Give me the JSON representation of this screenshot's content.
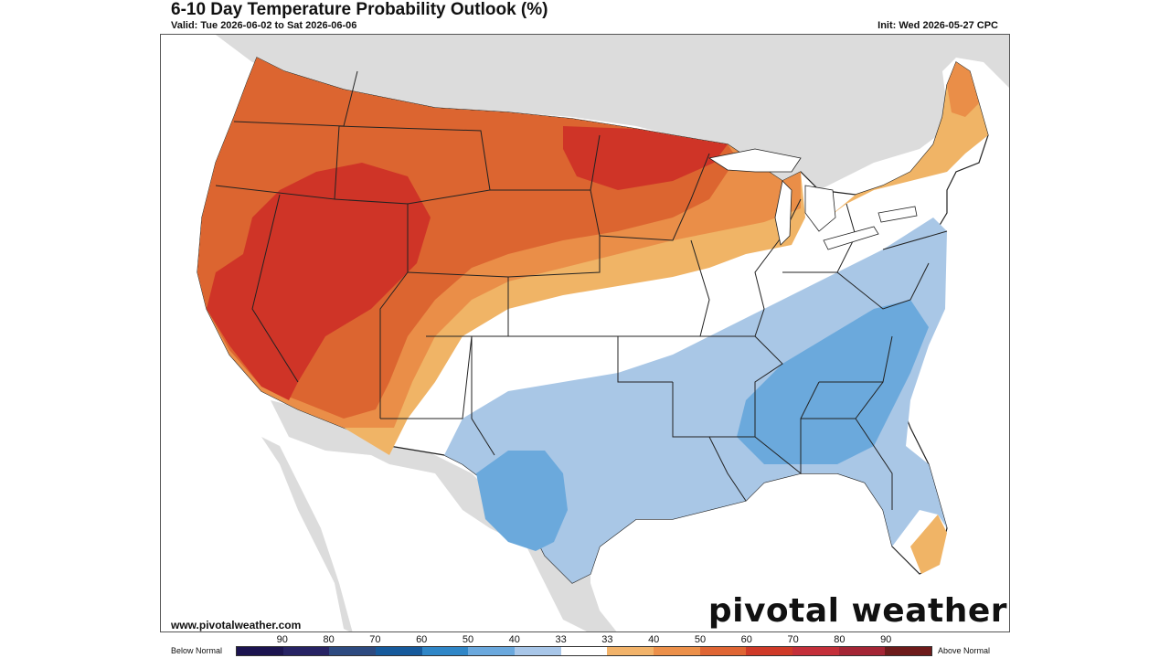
{
  "header": {
    "title": "6-10 Day Temperature Probability Outlook (%)",
    "valid": "Valid: Tue 2026-06-02 to Sat 2026-06-06",
    "init": "Init: Wed 2026-05-27 CPC"
  },
  "footer": {
    "website": "www.pivotalweather.com",
    "brand": "pivotal weather"
  },
  "legend": {
    "below_label": "Below Normal",
    "above_label": "Above Normal",
    "ticks": [
      "90",
      "80",
      "70",
      "60",
      "50",
      "40",
      "33",
      "33",
      "40",
      "50",
      "60",
      "70",
      "80",
      "90"
    ],
    "colors": [
      "#1c1450",
      "#272364",
      "#2d4a80",
      "#165a9c",
      "#2f86c7",
      "#6aa8dd",
      "#a8c6e8",
      "#ffffff",
      "#f2b36a",
      "#ec904a",
      "#df6534",
      "#cf3a28",
      "#c42f3a",
      "#a42535",
      "#6e1b1b"
    ]
  },
  "map": {
    "colors": {
      "land_bg": "#dcdcdc",
      "water": "#ffffff",
      "above_33": "#f0b466",
      "above_40": "#ea8e48",
      "above_50": "#dc6530",
      "above_60": "#cf3427",
      "below_33": "#a9c7e6",
      "below_40": "#6ba9dc",
      "near_normal": "#ffffff",
      "state_line": "#222222",
      "county_line": "#888888"
    }
  }
}
